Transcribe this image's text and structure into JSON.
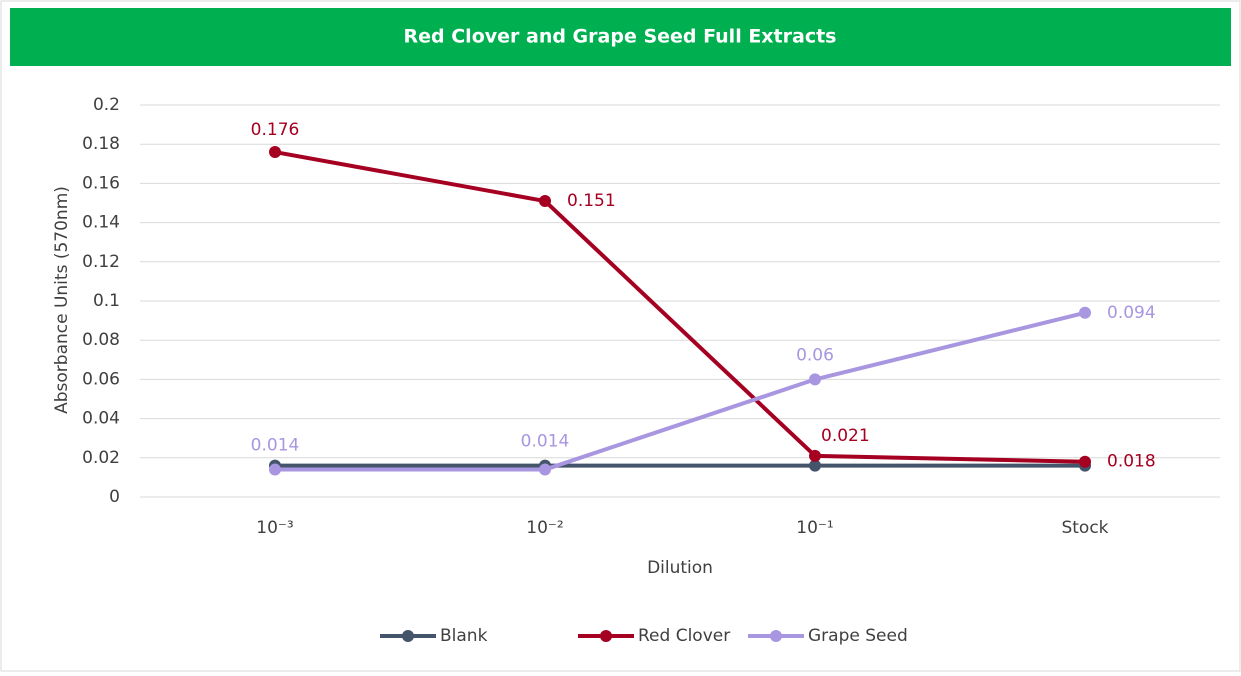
{
  "chart_data": {
    "type": "line",
    "title": "Red Clover and Grape Seed Full Extracts",
    "x_label": "Dilution",
    "y_label": "Absorbance Units (570nm)",
    "categories": [
      "10⁻³",
      "10⁻²",
      "10⁻¹",
      "Stock"
    ],
    "series": [
      {
        "name": "Blank",
        "color": "#44546a",
        "values": [
          0.016,
          0.016,
          0.016,
          0.016
        ],
        "data_labels": false
      },
      {
        "name": "Red Clover",
        "color": "#a50021",
        "values": [
          0.176,
          0.151,
          0.021,
          0.018
        ],
        "data_labels": true
      },
      {
        "name": "Grape Seed",
        "color": "#a896e0",
        "values": [
          0.014,
          0.014,
          0.06,
          0.094
        ],
        "data_labels": true
      }
    ],
    "ylim": [
      0,
      0.2
    ],
    "yticks": [
      0,
      0.02,
      0.04,
      0.06,
      0.08,
      0.1,
      0.12,
      0.14,
      0.16,
      0.18,
      0.2
    ],
    "grid": true,
    "legend": "bottom",
    "title_background": "#00b050"
  }
}
